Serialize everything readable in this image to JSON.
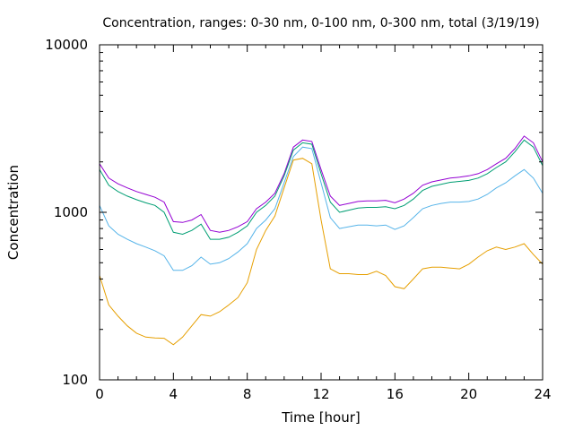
{
  "chart_data": {
    "type": "line",
    "title": "Concentration, ranges: 0-30 nm, 0-100 nm, 0-300 nm, total (3/19/19)",
    "xlabel": "Time [hour]",
    "ylabel": "Concentration",
    "xlim": [
      0,
      24
    ],
    "ylim": [
      100,
      10000
    ],
    "yscale": "log",
    "grid": false,
    "legend": "none",
    "xticks": [
      0,
      4,
      8,
      12,
      16,
      20,
      24
    ],
    "yticks": [
      100,
      1000,
      10000
    ],
    "x": [
      0,
      0.5,
      1,
      1.5,
      2,
      2.5,
      3,
      3.5,
      4,
      4.5,
      5,
      5.5,
      6,
      6.5,
      7,
      7.5,
      8,
      8.5,
      9,
      9.5,
      10,
      10.5,
      11,
      11.5,
      12,
      12.5,
      13,
      13.5,
      14,
      14.5,
      15,
      15.5,
      16,
      16.5,
      17,
      17.5,
      18,
      18.5,
      19,
      19.5,
      20,
      20.5,
      21,
      21.5,
      22,
      22.5,
      23,
      23.5,
      24
    ],
    "series": [
      {
        "color": "#9400d3",
        "values": [
          1950,
          1600,
          1480,
          1400,
          1330,
          1280,
          1230,
          1150,
          880,
          870,
          900,
          970,
          780,
          760,
          780,
          820,
          880,
          1050,
          1150,
          1300,
          1700,
          2450,
          2700,
          2650,
          1800,
          1250,
          1100,
          1130,
          1160,
          1170,
          1170,
          1180,
          1140,
          1200,
          1300,
          1450,
          1520,
          1560,
          1600,
          1620,
          1650,
          1700,
          1800,
          1950,
          2100,
          2400,
          2850,
          2600,
          2000
        ]
      },
      {
        "color": "#009e73",
        "values": [
          1800,
          1450,
          1330,
          1250,
          1190,
          1140,
          1100,
          1000,
          760,
          740,
          780,
          850,
          690,
          690,
          710,
          760,
          830,
          1000,
          1100,
          1250,
          1650,
          2350,
          2600,
          2550,
          1700,
          1150,
          1000,
          1030,
          1060,
          1070,
          1070,
          1080,
          1050,
          1100,
          1200,
          1350,
          1430,
          1470,
          1510,
          1530,
          1550,
          1600,
          1700,
          1850,
          2000,
          2300,
          2700,
          2450,
          1900
        ]
      },
      {
        "color": "#56b4e9",
        "values": [
          1100,
          830,
          740,
          690,
          650,
          620,
          590,
          550,
          450,
          450,
          480,
          540,
          490,
          500,
          530,
          580,
          650,
          800,
          900,
          1050,
          1500,
          2150,
          2450,
          2400,
          1500,
          930,
          800,
          820,
          840,
          840,
          830,
          840,
          790,
          830,
          930,
          1050,
          1100,
          1130,
          1150,
          1150,
          1160,
          1200,
          1280,
          1400,
          1500,
          1650,
          1800,
          1600,
          1300
        ]
      },
      {
        "color": "#e69f00",
        "values": [
          420,
          280,
          240,
          210,
          190,
          180,
          178,
          177,
          162,
          180,
          210,
          245,
          240,
          255,
          280,
          310,
          380,
          600,
          780,
          950,
          1400,
          2050,
          2100,
          1950,
          900,
          460,
          430,
          430,
          425,
          425,
          445,
          420,
          360,
          350,
          400,
          460,
          470,
          470,
          465,
          460,
          490,
          540,
          590,
          620,
          600,
          620,
          650,
          560,
          490
        ]
      }
    ]
  }
}
